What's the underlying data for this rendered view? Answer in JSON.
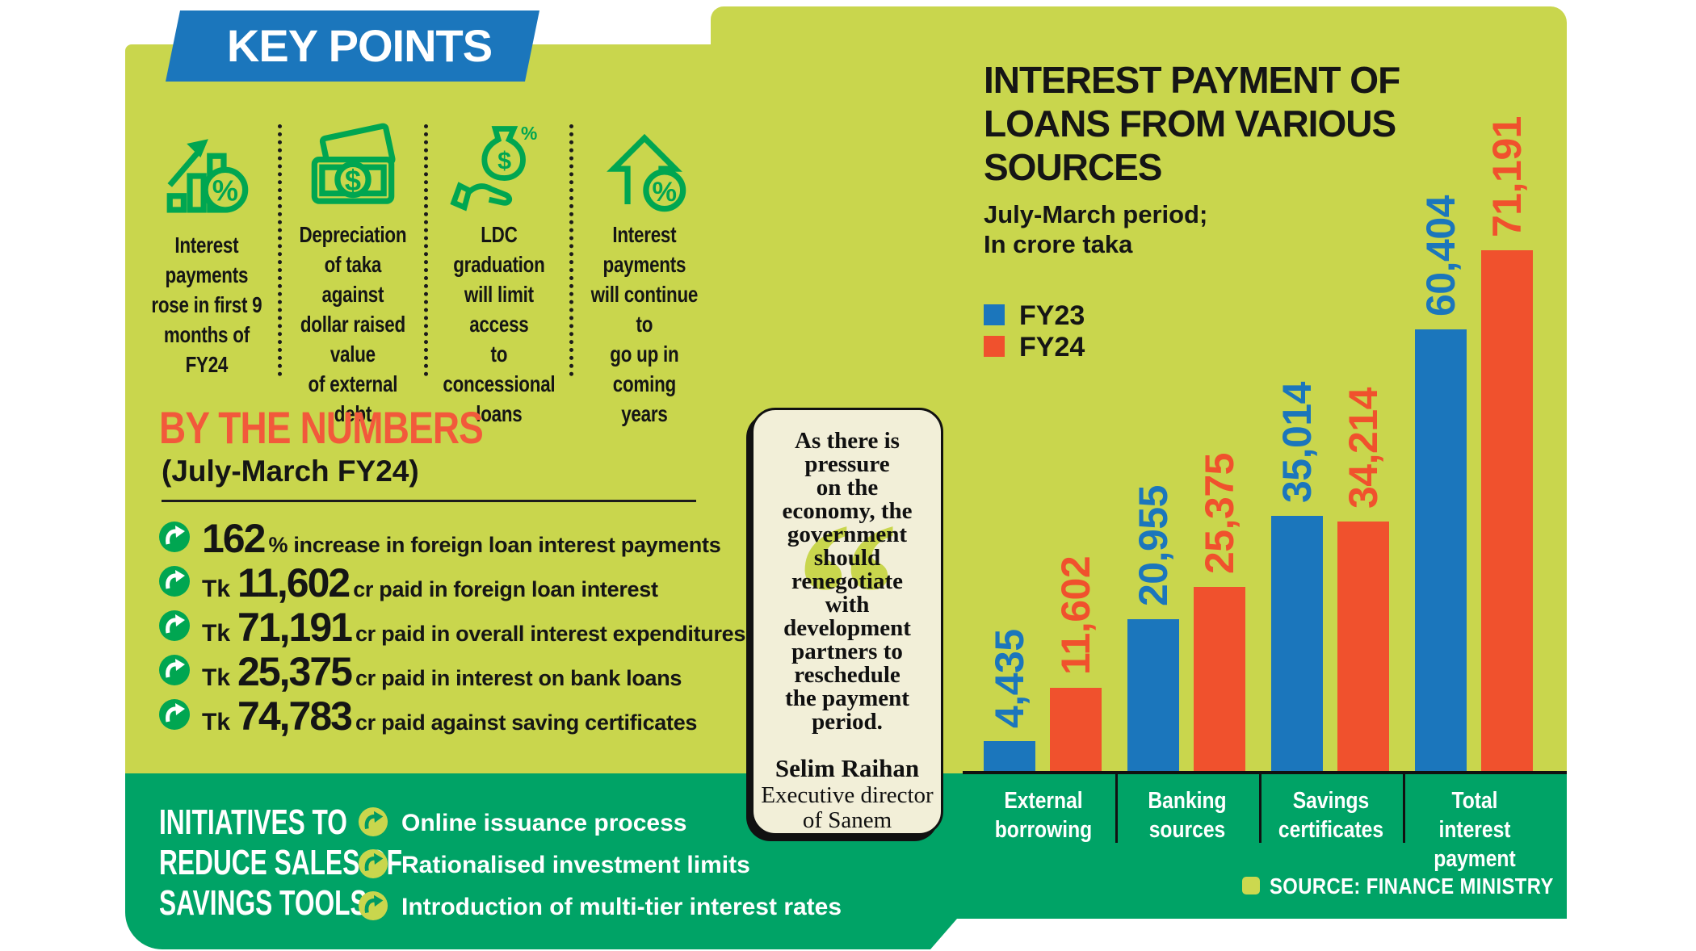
{
  "banner": {
    "label": "KEY POINTS"
  },
  "key_points": [
    {
      "icon": "growth-chart-percent-icon",
      "text": "Interest\npayments\nrose in first 9\nmonths of FY24"
    },
    {
      "icon": "banknote-icon",
      "text": "Depreciation\nof taka against\ndollar raised value\nof external debt"
    },
    {
      "icon": "money-bag-hand-icon",
      "text": "LDC graduation\nwill limit access\nto concessional\nloans"
    },
    {
      "icon": "house-arrow-percent-icon",
      "text": "Interest payments\nwill continue to\ngo up in coming\nyears"
    }
  ],
  "by_the_numbers": {
    "title": "BY THE NUMBERS",
    "subtitle": "(July-March FY24)",
    "items": [
      {
        "prefix": "",
        "value": "162",
        "suffix": "% increase in foreign loan interest payments"
      },
      {
        "prefix": "Tk",
        "value": "11,602",
        "suffix": "cr paid in foreign loan interest"
      },
      {
        "prefix": "Tk",
        "value": "71,191",
        "suffix": "cr paid in overall interest expenditures"
      },
      {
        "prefix": "Tk",
        "value": "25,375",
        "suffix": "cr paid in interest on bank loans"
      },
      {
        "prefix": "Tk",
        "value": "74,783",
        "suffix": "cr paid against saving certificates"
      }
    ]
  },
  "initiatives": {
    "title": "INITIATIVES TO\nREDUCE SALES OF\nSAVINGS TOOLS",
    "items": [
      "Online issuance process",
      "Rationalised investment limits",
      "Introduction of multi-tier interest rates"
    ]
  },
  "quote": {
    "text": "As there is\npressure\non the\neconomy, the\ngovernment\nshould\nrenegotiate\nwith\ndevelopment\npartners to\nreschedule\nthe payment\nperiod.",
    "author": "Selim Raihan",
    "role": "Executive director\nof Sanem"
  },
  "chart_data": {
    "type": "bar",
    "title": "INTEREST PAYMENT OF\nLOANS FROM VARIOUS\nSOURCES",
    "subtitle": "July-March period;\nIn crore taka",
    "categories": [
      "External\nborrowing",
      "Banking\nsources",
      "Savings\ncertificates",
      "Total interest\npayment"
    ],
    "series": [
      {
        "name": "FY23",
        "color": "#1b76bc",
        "values": [
          4435,
          20955,
          35014,
          60404
        ]
      },
      {
        "name": "FY24",
        "color": "#f0512d",
        "values": [
          11602,
          25375,
          34214,
          71191
        ]
      }
    ],
    "value_labels": [
      [
        "4,435",
        "20,955",
        "35,014",
        "60,404"
      ],
      [
        "11,602",
        "25,375",
        "34,214",
        "71,191"
      ]
    ],
    "ylim": [
      0,
      75000
    ],
    "grid": false,
    "legend_position": "top-left",
    "value_label_orientation": "vertical"
  },
  "source": {
    "label": "SOURCE: FINANCE MINISTRY"
  },
  "colors": {
    "background_panel": "#c9d64d",
    "footer_band": "#00a366",
    "icon_green": "#00a651",
    "banner_blue": "#1b76bc",
    "fy23_blue": "#1b76bc",
    "fy24_orange": "#f0512d",
    "heading_orange": "#f2593b",
    "quote_card": "#f2efd8"
  }
}
